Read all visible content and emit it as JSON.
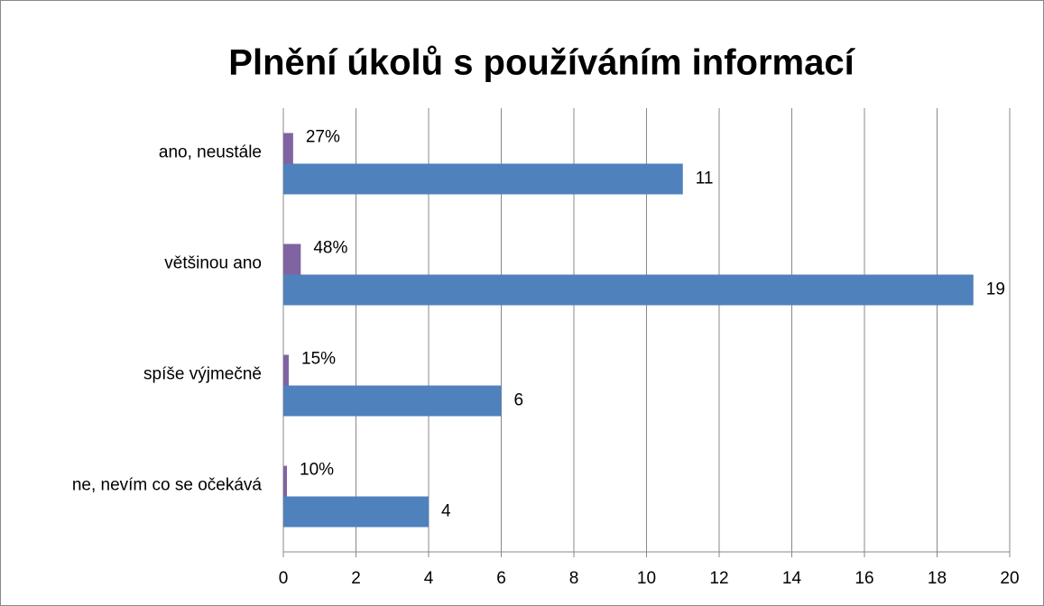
{
  "chart_data": {
    "type": "bar",
    "orientation": "horizontal",
    "title": "Plnění úkolů s používáním informací",
    "categories": [
      "ano, neustále",
      "většinou ano",
      "spíše výjmečně",
      "ne, nevím co se očekává"
    ],
    "series": [
      {
        "color": "#8064a2",
        "values": [
          0.27,
          0.48,
          0.15,
          0.1
        ],
        "value_labels": [
          "27%",
          "48%",
          "15%",
          "10%"
        ]
      },
      {
        "color": "#4f81bd",
        "values": [
          11,
          19,
          6,
          4
        ]
      }
    ],
    "xlim": [
      0,
      20
    ],
    "xticks": [
      0,
      2,
      4,
      6,
      8,
      10,
      12,
      14,
      16,
      18,
      20
    ],
    "grid": true
  }
}
